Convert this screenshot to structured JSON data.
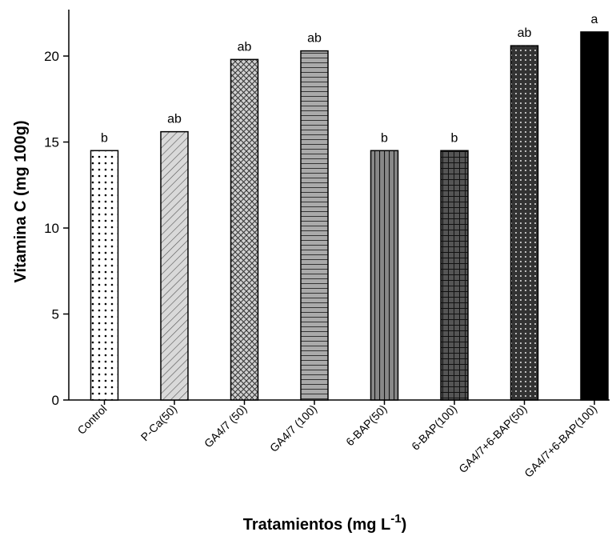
{
  "chart_data": {
    "type": "bar",
    "xlabel": "Tratamientos (mg L",
    "xlabel_superscript": "-1",
    "xlabel_suffix": ")",
    "ylabel": "Vitamina C (mg 100g)",
    "ylim": [
      0,
      22.7
    ],
    "yticks": [
      "0",
      "5",
      "10",
      "15",
      "20"
    ],
    "grid": false,
    "legend": "none",
    "categories": [
      "Control",
      "P-Ca(50)",
      "GA4/7 (50)",
      "GA4/7 (100)",
      "6-BAP(50)",
      "6-BAP(100)",
      "GA4/7+6-BAP(50)",
      "GA4/7+6-BAP(100)"
    ],
    "values": [
      14.5,
      15.6,
      19.8,
      20.3,
      14.5,
      14.5,
      20.6,
      21.4
    ],
    "significance_letters": [
      "b",
      "ab",
      "ab",
      "ab",
      "b",
      "b",
      "ab",
      "a"
    ],
    "patterns": [
      "dots",
      "diagonal",
      "crosshatch",
      "horizontal",
      "vertical",
      "grid",
      "dense-dots",
      "solid"
    ],
    "fill_colors": [
      "#ffffff",
      "#d9d9d9",
      "#d0d0d0",
      "#aaaaaa",
      "#888888",
      "#555555",
      "#333333",
      "#000000"
    ]
  }
}
